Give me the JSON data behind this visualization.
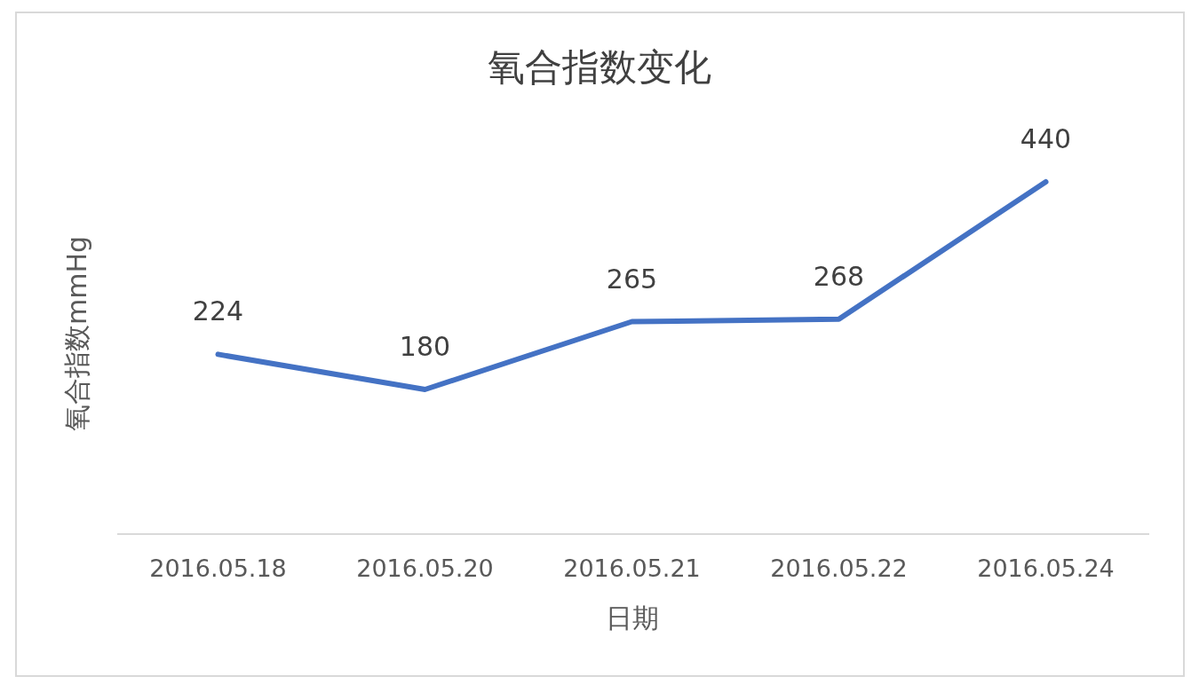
{
  "chart_data": {
    "type": "line",
    "title": "氧合指数变化",
    "xlabel": "日期",
    "ylabel": "氧合指数mmHg",
    "categories": [
      "2016.05.18",
      "2016.05.20",
      "2016.05.21",
      "2016.05.22",
      "2016.05.24"
    ],
    "series": [
      {
        "color": "#4472c4",
        "values": [
          224,
          180,
          265,
          268,
          440
        ]
      }
    ],
    "data_labels": true,
    "grid": false,
    "marker": "none",
    "line_style": "solid",
    "tick_labels": "x"
  }
}
